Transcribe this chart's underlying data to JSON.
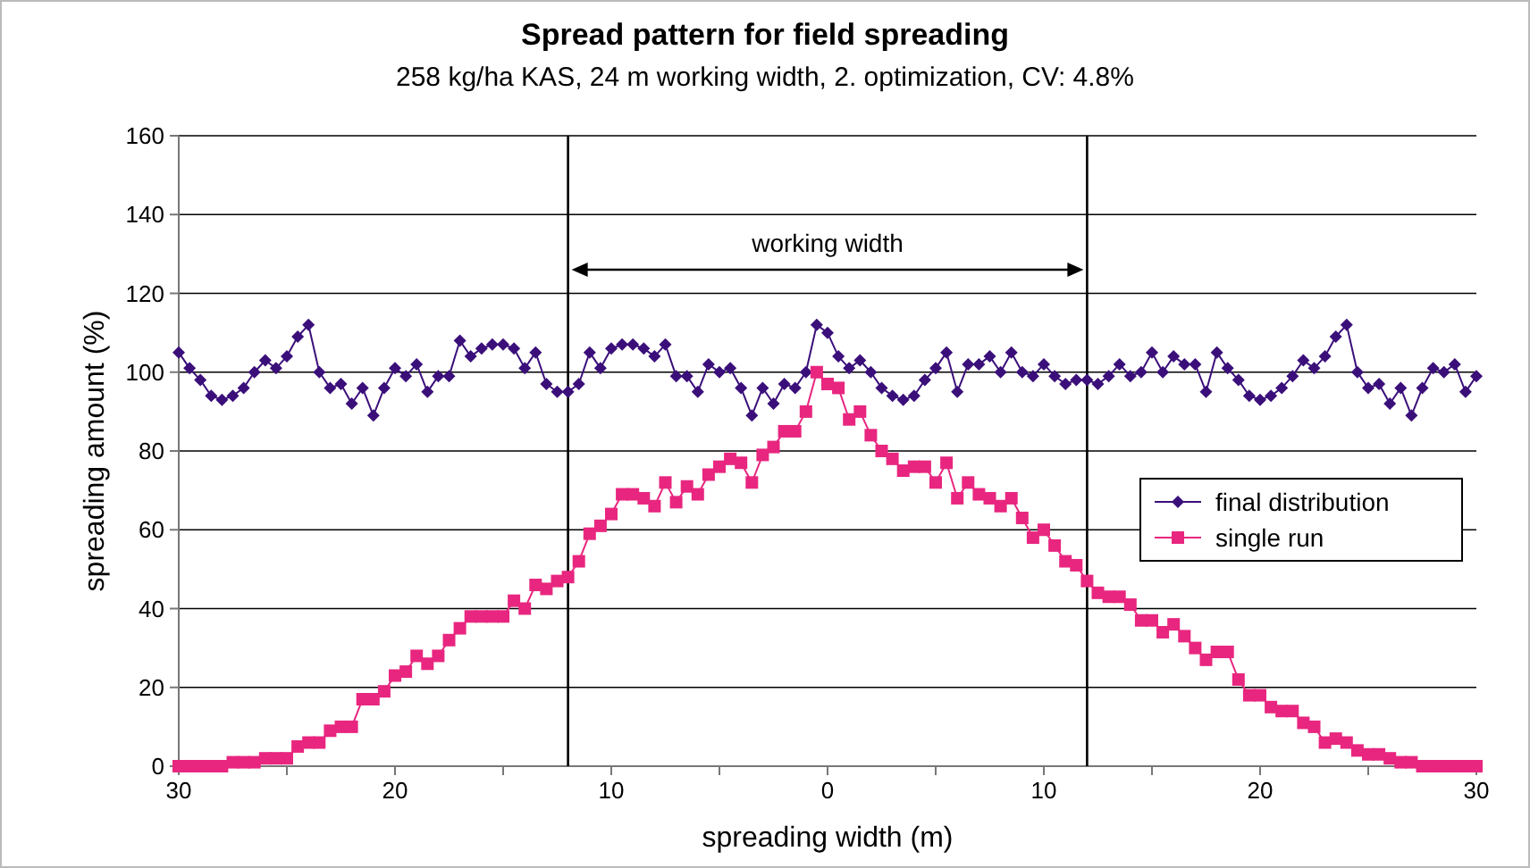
{
  "chart_data": {
    "type": "line",
    "title": "Spread pattern for field spreading",
    "subtitle": "258 kg/ha KAS, 24 m working width, 2. optimization, CV: 4.8%",
    "xlabel": "spreading width (m)",
    "ylabel": "spreading amount (%)",
    "x": [
      -30,
      -29.5,
      -29,
      -28.5,
      -28,
      -27.5,
      -27,
      -26.5,
      -26,
      -25.5,
      -25,
      -24.5,
      -24,
      -23.5,
      -23,
      -22.5,
      -22,
      -21.5,
      -21,
      -20.5,
      -20,
      -19.5,
      -19,
      -18.5,
      -18,
      -17.5,
      -17,
      -16.5,
      -16,
      -15.5,
      -15,
      -14.5,
      -14,
      -13.5,
      -13,
      -12.5,
      -12,
      -11.5,
      -11,
      -10.5,
      -10,
      -9.5,
      -9,
      -8.5,
      -8,
      -7.5,
      -7,
      -6.5,
      -6,
      -5.5,
      -5,
      -4.5,
      -4,
      -3.5,
      -3,
      -2.5,
      -2,
      -1.5,
      -1,
      -0.5,
      0,
      0.5,
      1,
      1.5,
      2,
      2.5,
      3,
      3.5,
      4,
      4.5,
      5,
      5.5,
      6,
      6.5,
      7,
      7.5,
      8,
      8.5,
      9,
      9.5,
      10,
      10.5,
      11,
      11.5,
      12,
      12.5,
      13,
      13.5,
      14,
      14.5,
      15,
      15.5,
      16,
      16.5,
      17,
      17.5,
      18,
      18.5,
      19,
      19.5,
      20,
      20.5,
      21,
      21.5,
      22,
      22.5,
      23,
      23.5,
      24,
      24.5,
      25,
      25.5,
      26,
      26.5,
      27,
      27.5,
      28,
      28.5,
      29,
      29.5,
      30
    ],
    "series": [
      {
        "name": "final distribution",
        "color": "#3b0f7a",
        "marker": "diamond",
        "values": [
          105,
          101,
          98,
          94,
          93,
          94,
          96,
          100,
          103,
          101,
          104,
          109,
          112,
          100,
          96,
          97,
          92,
          96,
          89,
          96,
          101,
          99,
          102,
          95,
          99,
          99,
          108,
          104,
          106,
          107,
          107,
          106,
          101,
          105,
          97,
          95,
          95,
          97,
          105,
          101,
          106,
          107,
          107,
          106,
          104,
          107,
          99,
          99,
          95,
          102,
          100,
          101,
          96,
          89,
          96,
          92,
          97,
          96,
          100,
          112,
          110,
          104,
          101,
          103,
          100,
          96,
          94,
          93,
          94,
          98,
          101,
          105,
          95,
          102,
          102,
          104,
          100,
          105,
          100,
          99,
          102,
          99,
          97,
          98,
          98,
          97,
          99,
          102,
          99,
          100,
          105,
          100,
          104,
          102,
          102,
          95,
          105,
          101,
          98,
          94,
          93,
          94,
          96,
          99,
          103,
          101,
          104,
          109,
          112,
          100,
          96,
          97,
          92,
          96,
          89,
          96,
          101,
          100,
          102,
          95,
          99
        ]
      },
      {
        "name": "single run",
        "color": "#e8267f",
        "marker": "square",
        "values": [
          0,
          0,
          0,
          0,
          0,
          1,
          1,
          1,
          2,
          2,
          2,
          5,
          6,
          6,
          9,
          10,
          10,
          17,
          17,
          19,
          23,
          24,
          28,
          26,
          28,
          32,
          35,
          38,
          38,
          38,
          38,
          42,
          40,
          46,
          45,
          47,
          48,
          52,
          59,
          61,
          64,
          69,
          69,
          68,
          66,
          72,
          67,
          71,
          69,
          74,
          76,
          78,
          77,
          72,
          79,
          81,
          85,
          85,
          90,
          100,
          97,
          96,
          88,
          90,
          84,
          80,
          78,
          75,
          76,
          76,
          72,
          77,
          68,
          72,
          69,
          68,
          66,
          68,
          63,
          58,
          60,
          56,
          52,
          51,
          47,
          44,
          43,
          43,
          41,
          37,
          37,
          34,
          36,
          33,
          30,
          27,
          29,
          29,
          22,
          18,
          18,
          15,
          14,
          14,
          11,
          10,
          6,
          7,
          6,
          4,
          3,
          3,
          2,
          1,
          1,
          0,
          0,
          0,
          0,
          0,
          0
        ]
      }
    ],
    "xlim": [
      -30,
      30
    ],
    "xticks": [
      {
        "value": -30,
        "label": "30"
      },
      {
        "value": -25,
        "label": null
      },
      {
        "value": -20,
        "label": "20"
      },
      {
        "value": -15,
        "label": null
      },
      {
        "value": -10,
        "label": "10"
      },
      {
        "value": -5,
        "label": null
      },
      0,
      {
        "value": 5,
        "label": null
      },
      10,
      {
        "value": 15,
        "label": null
      },
      20,
      {
        "value": 25,
        "label": null
      },
      30
    ],
    "ylim": [
      0,
      160
    ],
    "yticks": [
      0,
      20,
      40,
      60,
      80,
      100,
      120,
      140,
      160
    ],
    "grid": "y",
    "legend": "right",
    "line_style": "solid",
    "ref_lines": [
      {
        "axis": "x",
        "value": -12,
        "color": "#000000"
      },
      {
        "axis": "x",
        "value": 12,
        "color": "#000000"
      }
    ],
    "annotations": [
      "working width"
    ]
  }
}
